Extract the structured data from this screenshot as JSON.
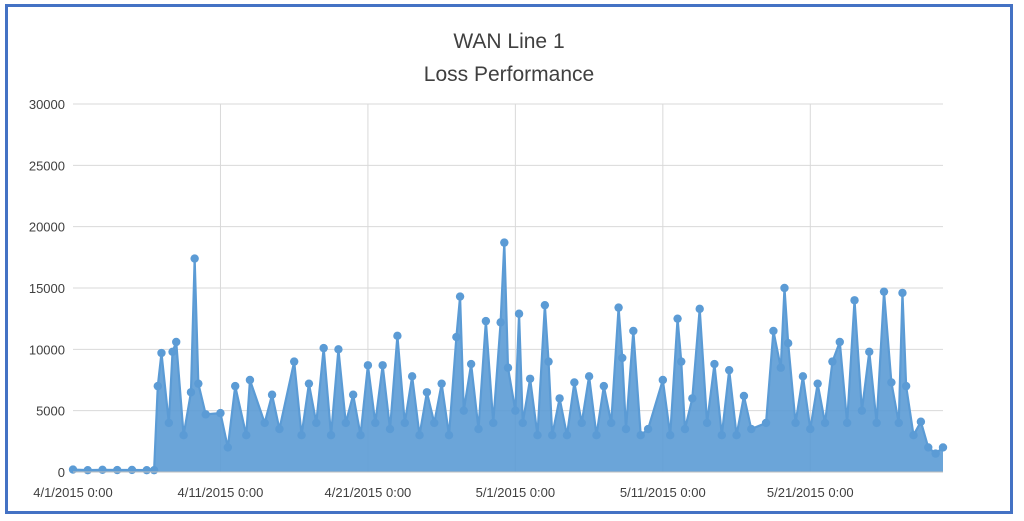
{
  "chart_data": {
    "type": "line",
    "title": "WAN Line 1",
    "subtitle": "Loss Performance",
    "xlabel": "",
    "ylabel": "",
    "ylim": [
      0,
      30000
    ],
    "y_ticks": [
      0,
      5000,
      10000,
      15000,
      20000,
      25000,
      30000
    ],
    "y_tick_labels": [
      "0",
      "5000",
      "10000",
      "15000",
      "20000",
      "25000",
      "30000"
    ],
    "x_range": [
      "2015-04-01",
      "2015-05-30"
    ],
    "x_ticks": [
      "2015-04-01",
      "2015-04-11",
      "2015-04-21",
      "2015-05-01",
      "2015-05-11",
      "2015-05-21"
    ],
    "x_tick_labels": [
      "4/1/2015 0:00",
      "4/11/2015 0:00",
      "4/21/2015 0:00",
      "5/1/2015 0:00",
      "5/11/2015 0:00",
      "5/21/2015 0:00"
    ],
    "grid": true,
    "legend": "none",
    "series_color": "#5b9bd5",
    "series": [
      {
        "points": [
          [
            "2015-04-01",
            200
          ],
          [
            "2015-04-02",
            150
          ],
          [
            "2015-04-03",
            180
          ],
          [
            "2015-04-04",
            160
          ],
          [
            "2015-04-05",
            170
          ],
          [
            "2015-04-06",
            150
          ],
          [
            "2015-04-06 12:00",
            150
          ],
          [
            "2015-04-06 18:00",
            7000
          ],
          [
            "2015-04-07",
            9700
          ],
          [
            "2015-04-07 12:00",
            4000
          ],
          [
            "2015-04-07 18:00",
            9800
          ],
          [
            "2015-04-08",
            10600
          ],
          [
            "2015-04-08 12:00",
            3000
          ],
          [
            "2015-04-09",
            6500
          ],
          [
            "2015-04-09 06:00",
            17400
          ],
          [
            "2015-04-09 12:00",
            7200
          ],
          [
            "2015-04-10",
            4700
          ],
          [
            "2015-04-11",
            4800
          ],
          [
            "2015-04-11 12:00",
            2000
          ],
          [
            "2015-04-12",
            7000
          ],
          [
            "2015-04-12 18:00",
            3000
          ],
          [
            "2015-04-13",
            7500
          ],
          [
            "2015-04-14",
            4000
          ],
          [
            "2015-04-14 12:00",
            6300
          ],
          [
            "2015-04-15",
            3500
          ],
          [
            "2015-04-16",
            9000
          ],
          [
            "2015-04-16 12:00",
            3000
          ],
          [
            "2015-04-17",
            7200
          ],
          [
            "2015-04-17 12:00",
            4000
          ],
          [
            "2015-04-18",
            10100
          ],
          [
            "2015-04-18 12:00",
            3000
          ],
          [
            "2015-04-19",
            10000
          ],
          [
            "2015-04-19 12:00",
            4000
          ],
          [
            "2015-04-20",
            6300
          ],
          [
            "2015-04-20 12:00",
            3000
          ],
          [
            "2015-04-21",
            8700
          ],
          [
            "2015-04-21 12:00",
            4000
          ],
          [
            "2015-04-22",
            8700
          ],
          [
            "2015-04-22 12:00",
            3500
          ],
          [
            "2015-04-23",
            11100
          ],
          [
            "2015-04-23 12:00",
            4000
          ],
          [
            "2015-04-24",
            7800
          ],
          [
            "2015-04-24 12:00",
            3000
          ],
          [
            "2015-04-25",
            6500
          ],
          [
            "2015-04-25 12:00",
            4000
          ],
          [
            "2015-04-26",
            7200
          ],
          [
            "2015-04-26 12:00",
            3000
          ],
          [
            "2015-04-27",
            11000
          ],
          [
            "2015-04-27 06:00",
            14300
          ],
          [
            "2015-04-27 12:00",
            5000
          ],
          [
            "2015-04-28",
            8800
          ],
          [
            "2015-04-28 12:00",
            3500
          ],
          [
            "2015-04-29",
            12300
          ],
          [
            "2015-04-29 12:00",
            4000
          ],
          [
            "2015-04-30",
            12200
          ],
          [
            "2015-04-30 06:00",
            18700
          ],
          [
            "2015-04-30 12:00",
            8500
          ],
          [
            "2015-05-01",
            5000
          ],
          [
            "2015-05-01 06:00",
            12900
          ],
          [
            "2015-05-01 12:00",
            4000
          ],
          [
            "2015-05-02",
            7600
          ],
          [
            "2015-05-02 12:00",
            3000
          ],
          [
            "2015-05-03",
            13600
          ],
          [
            "2015-05-03 06:00",
            9000
          ],
          [
            "2015-05-03 12:00",
            3000
          ],
          [
            "2015-05-04",
            6000
          ],
          [
            "2015-05-04 12:00",
            3000
          ],
          [
            "2015-05-05",
            7300
          ],
          [
            "2015-05-05 12:00",
            4000
          ],
          [
            "2015-05-06",
            7800
          ],
          [
            "2015-05-06 12:00",
            3000
          ],
          [
            "2015-05-07",
            7000
          ],
          [
            "2015-05-07 12:00",
            4000
          ],
          [
            "2015-05-08",
            13400
          ],
          [
            "2015-05-08 06:00",
            9300
          ],
          [
            "2015-05-08 12:00",
            3500
          ],
          [
            "2015-05-09",
            11500
          ],
          [
            "2015-05-09 12:00",
            3000
          ],
          [
            "2015-05-10",
            3500
          ],
          [
            "2015-05-11",
            7500
          ],
          [
            "2015-05-11 12:00",
            3000
          ],
          [
            "2015-05-12",
            12500
          ],
          [
            "2015-05-12 06:00",
            9000
          ],
          [
            "2015-05-12 12:00",
            3500
          ],
          [
            "2015-05-13",
            6000
          ],
          [
            "2015-05-13 12:00",
            13300
          ],
          [
            "2015-05-14",
            4000
          ],
          [
            "2015-05-14 12:00",
            8800
          ],
          [
            "2015-05-15",
            3000
          ],
          [
            "2015-05-15 12:00",
            8300
          ],
          [
            "2015-05-16",
            3000
          ],
          [
            "2015-05-16 12:00",
            6200
          ],
          [
            "2015-05-17",
            3500
          ],
          [
            "2015-05-18",
            4000
          ],
          [
            "2015-05-18 12:00",
            11500
          ],
          [
            "2015-05-19",
            8500
          ],
          [
            "2015-05-19 06:00",
            15000
          ],
          [
            "2015-05-19 12:00",
            10500
          ],
          [
            "2015-05-20",
            4000
          ],
          [
            "2015-05-20 12:00",
            7800
          ],
          [
            "2015-05-21",
            3500
          ],
          [
            "2015-05-21 12:00",
            7200
          ],
          [
            "2015-05-22",
            4000
          ],
          [
            "2015-05-22 12:00",
            9000
          ],
          [
            "2015-05-23",
            10600
          ],
          [
            "2015-05-23 12:00",
            4000
          ],
          [
            "2015-05-24",
            14000
          ],
          [
            "2015-05-24 12:00",
            5000
          ],
          [
            "2015-05-25",
            9800
          ],
          [
            "2015-05-25 12:00",
            4000
          ],
          [
            "2015-05-26",
            14700
          ],
          [
            "2015-05-26 12:00",
            7300
          ],
          [
            "2015-05-27",
            4000
          ],
          [
            "2015-05-27 06:00",
            14600
          ],
          [
            "2015-05-27 12:00",
            7000
          ],
          [
            "2015-05-28",
            3000
          ],
          [
            "2015-05-28 12:00",
            4100
          ],
          [
            "2015-05-29",
            2000
          ],
          [
            "2015-05-29 12:00",
            1500
          ],
          [
            "2015-05-30",
            2000
          ]
        ]
      }
    ]
  }
}
